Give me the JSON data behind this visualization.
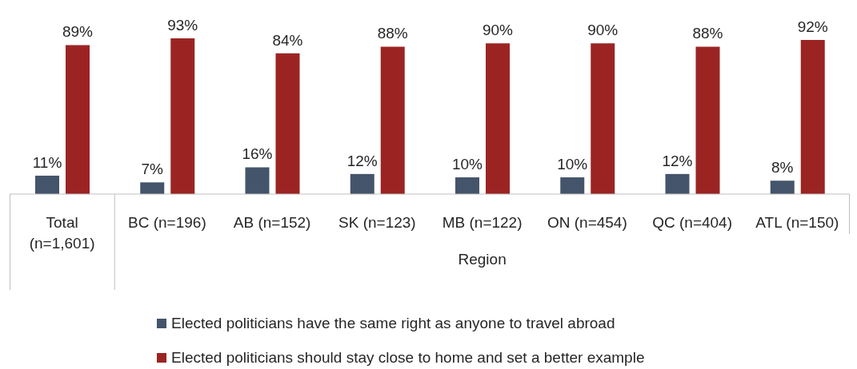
{
  "chart_data": {
    "type": "bar",
    "categories": [
      "Total (n=1,601)",
      "BC (n=196)",
      "AB (n=152)",
      "SK (n=123)",
      "MB (n=122)",
      "ON (n=454)",
      "QC (n=404)",
      "ATL (n=150)"
    ],
    "xlabel": "Region",
    "series": [
      {
        "name": "Elected politicians have the same right as anyone to travel abroad",
        "color": "#44546a",
        "values": [
          11,
          7,
          16,
          12,
          10,
          10,
          12,
          8
        ],
        "value_labels": [
          "11%",
          "7%",
          "16%",
          "12%",
          "10%",
          "10%",
          "12%",
          "8%"
        ]
      },
      {
        "name": "Elected politicians should stay close to home and set a better example",
        "color": "#9b2423",
        "values": [
          89,
          93,
          84,
          88,
          90,
          90,
          88,
          92
        ],
        "value_labels": [
          "89%",
          "93%",
          "84%",
          "88%",
          "90%",
          "90%",
          "88%",
          "92%"
        ]
      }
    ],
    "legend": "bottom",
    "grid": false
  }
}
